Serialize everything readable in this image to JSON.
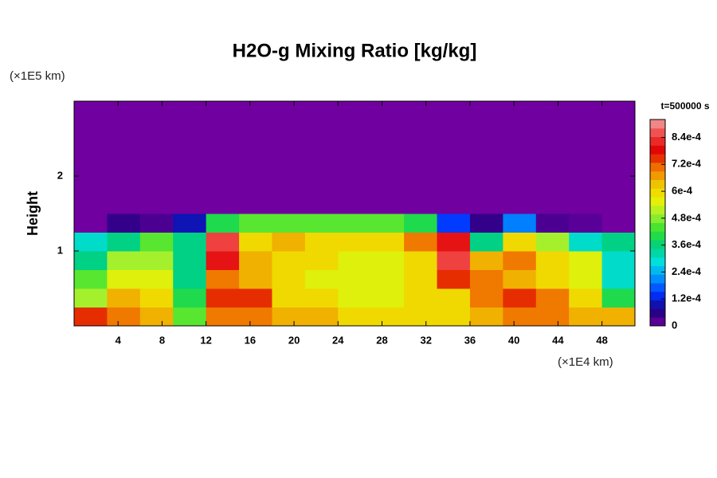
{
  "chart_data": {
    "type": "heatmap",
    "title": "H2O-g Mixing Ratio [kg/kg]",
    "y_label": "Height",
    "y_unit": "(×1E5 km)",
    "x_unit": "(×1E4 km)",
    "time_label": "t=500000 s",
    "xlim": [
      0,
      51
    ],
    "ylim": [
      0,
      3
    ],
    "xticks": [
      4,
      8,
      12,
      16,
      20,
      24,
      28,
      32,
      36,
      40,
      44,
      48
    ],
    "yticks": [
      1,
      2
    ],
    "xbins": [
      0,
      3,
      6,
      9,
      12,
      15,
      18,
      21,
      24,
      27,
      30,
      33,
      36,
      39,
      42,
      45,
      48,
      51
    ],
    "ybins": [
      0,
      0.25,
      0.5,
      0.75,
      1.0,
      1.25,
      1.5,
      3.0
    ],
    "values": [
      [
        0.00075,
        0.0007,
        0.00065,
        0.00045,
        0.0007,
        0.0007,
        0.00065,
        0.00065,
        0.0006,
        0.0006,
        0.0006,
        0.0006,
        0.00065,
        0.0007,
        0.0007,
        0.00065,
        0.00065
      ],
      [
        0.0005,
        0.00065,
        0.0006,
        0.0004,
        0.00075,
        0.00075,
        0.0006,
        0.0006,
        0.00055,
        0.00055,
        0.0006,
        0.0006,
        0.0007,
        0.00075,
        0.0007,
        0.0006,
        0.0004
      ],
      [
        0.00045,
        0.00055,
        0.00055,
        0.00035,
        0.0007,
        0.00065,
        0.0006,
        0.00055,
        0.00055,
        0.00055,
        0.0006,
        0.00075,
        0.0007,
        0.00065,
        0.0006,
        0.00055,
        0.0003
      ],
      [
        0.00035,
        0.0005,
        0.0005,
        0.00035,
        0.0008,
        0.00065,
        0.0006,
        0.0006,
        0.00055,
        0.00055,
        0.0006,
        0.00085,
        0.00065,
        0.0007,
        0.0006,
        0.00055,
        0.0003
      ],
      [
        0.0003,
        0.00035,
        0.00045,
        0.00035,
        0.00085,
        0.0006,
        0.00065,
        0.0006,
        0.0006,
        0.0006,
        0.0007,
        0.0008,
        0.00035,
        0.0006,
        0.0005,
        0.0003,
        0.00035
      ],
      [
        0,
        5e-05,
        3e-05,
        0.0001,
        0.0004,
        0.00045,
        0.00045,
        0.00045,
        0.00045,
        0.00045,
        0.0004,
        0.00015,
        5e-05,
        0.0002,
        3e-05,
        2e-05,
        0
      ],
      [
        0,
        0,
        0,
        0,
        0,
        0,
        0,
        0,
        0,
        0,
        0,
        0,
        0,
        0,
        0,
        0,
        0
      ]
    ],
    "clim": [
      0,
      0.00092
    ],
    "cticks": [
      {
        "value": 0,
        "label": "0"
      },
      {
        "value": 0.00012,
        "label": "1.2e-4"
      },
      {
        "value": 0.00024,
        "label": "2.4e-4"
      },
      {
        "value": 0.00036,
        "label": "3.6e-4"
      },
      {
        "value": 0.00048,
        "label": "4.8e-4"
      },
      {
        "value": 0.0006,
        "label": "6e-4"
      },
      {
        "value": 0.00072,
        "label": "7.2e-4"
      },
      {
        "value": 0.00084,
        "label": "8.4e-4"
      }
    ],
    "colormap": [
      "#7000a0",
      "#1a0080",
      "#0030ff",
      "#0090ff",
      "#00e0e0",
      "#00d080",
      "#30e030",
      "#a0f030",
      "#f0f000",
      "#f0c000",
      "#f07000",
      "#e00000",
      "#f04040",
      "#f0a0a0"
    ]
  }
}
